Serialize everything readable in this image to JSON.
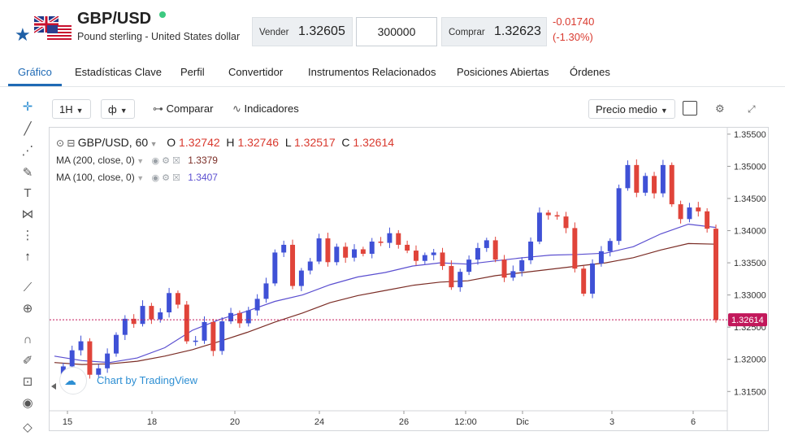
{
  "instrument": {
    "symbol": "GBP/USD",
    "description": "Pound sterling - United States dollar",
    "icons": [
      "star-icon",
      "gbp-usd-flags-icon",
      "live-status-dot"
    ]
  },
  "quote": {
    "sell_label": "Vender",
    "sell_value": "1.32605",
    "quantity": "300000",
    "buy_label": "Comprar",
    "buy_value": "1.32623",
    "change_abs": "-0.01740",
    "change_pct": "(-1.30%)",
    "change_color": "#d93a2f"
  },
  "tabs": [
    {
      "label": "Gráfico",
      "active": true
    },
    {
      "label": "Estadísticas Clave"
    },
    {
      "label": "Perfil"
    },
    {
      "label": "Convertidor"
    },
    {
      "label": "Instrumentos Relacionados"
    },
    {
      "label": "Posiciones Abiertas"
    },
    {
      "label": "Órdenes"
    }
  ],
  "left_tools": [
    "crosshair-icon",
    "trend-line-icon",
    "fib-icon",
    "brush-icon",
    "text-icon",
    "pattern-icon",
    "projection-icon",
    "arrow-up-icon",
    "ruler-icon",
    "zoom-icon",
    "magnet-icon",
    "lock-drawing-icon",
    "lock-icon",
    "eye-icon",
    "trash-icon"
  ],
  "toolbar": {
    "interval": "1H",
    "compare_label": "Comparar",
    "indicators_label": "Indicadores",
    "price_type": "Precio medio"
  },
  "legend": {
    "title": "GBP/USD, 60",
    "o_label": "O",
    "o": "1.32742",
    "h_label": "H",
    "h": "1.32746",
    "l_label": "L",
    "l": "1.32517",
    "c_label": "C",
    "c": "1.32614",
    "ma200_label": "MA (200, close, 0)",
    "ma200_value": "1.3379",
    "ma100_label": "MA (100, close, 0)",
    "ma100_value": "1.3407",
    "ma200_color": "#7b2d26",
    "ma100_color": "#5b4fd0"
  },
  "branding": "Chart by TradingView",
  "chart_data": {
    "type": "candlestick",
    "x_ticks": [
      "15",
      "18",
      "20",
      "24",
      "26",
      "12:00",
      "Dic",
      "3",
      "6"
    ],
    "y_ticks": [
      "1.35500",
      "1.35000",
      "1.34500",
      "1.34000",
      "1.33500",
      "1.33000",
      "1.32500",
      "1.32000",
      "1.31500"
    ],
    "y_range": [
      1.312,
      1.356
    ],
    "last_price": "1.32614",
    "last_price_color": "#c2185b",
    "up_color": "#3f51d6",
    "down_color": "#e0443a",
    "close_path": [
      1.3163,
      1.3189,
      1.3214,
      1.3228,
      1.3176,
      1.3186,
      1.3209,
      1.3238,
      1.3263,
      1.3255,
      1.3283,
      1.3262,
      1.3273,
      1.3303,
      1.3285,
      1.3228,
      1.3229,
      1.3258,
      1.3213,
      1.3259,
      1.3272,
      1.3256,
      1.3276,
      1.3294,
      1.3318,
      1.3366,
      1.3378,
      1.3314,
      1.3338,
      1.3352,
      1.3388,
      1.3351,
      1.3375,
      1.3358,
      1.3371,
      1.3364,
      1.3383,
      1.3381,
      1.3396,
      1.3378,
      1.3369,
      1.3353,
      1.3362,
      1.3366,
      1.3345,
      1.3312,
      1.3336,
      1.3355,
      1.3373,
      1.3385,
      1.3355,
      1.3327,
      1.3337,
      1.3354,
      1.3383,
      1.3428,
      1.3424,
      1.3422,
      1.3404,
      1.3341,
      1.3302,
      1.3349,
      1.3368,
      1.3384,
      1.3466,
      1.3502,
      1.3459,
      1.3485,
      1.3458,
      1.3502,
      1.3441,
      1.3418,
      1.3436,
      1.343,
      1.3403,
      1.3261
    ],
    "ma100": [
      1.3205,
      1.3198,
      1.3195,
      1.3202,
      1.3218,
      1.3245,
      1.3262,
      1.3275,
      1.329,
      1.33,
      1.3316,
      1.3328,
      1.3335,
      1.3345,
      1.335,
      1.3348,
      1.3353,
      1.3358,
      1.3362,
      1.3363,
      1.3365,
      1.3375,
      1.3395,
      1.341,
      1.3405
    ],
    "ma200": [
      1.3195,
      1.3192,
      1.3193,
      1.3197,
      1.3205,
      1.3215,
      1.3228,
      1.3242,
      1.3258,
      1.3272,
      1.3288,
      1.3299,
      1.3307,
      1.3315,
      1.332,
      1.3322,
      1.333,
      1.3335,
      1.334,
      1.3345,
      1.335,
      1.3358,
      1.337,
      1.338,
      1.3379
    ]
  }
}
